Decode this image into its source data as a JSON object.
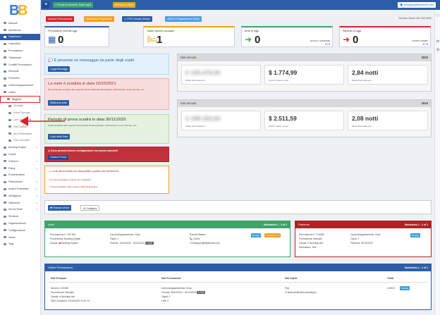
{
  "topbar": {
    "version_btn": "Prova la versione: Suite Light",
    "close_btn": "Passa a Extra",
    "user": "svilupppo@bbplanner.com"
  },
  "quick": {
    "b1": "Inserisci Prenotazione",
    "b2": "Richiesta di Pagamento",
    "b3": "POS Virtuale (Stripe)",
    "b4": "Ultimi 10 Pagamenti su Stripe"
  },
  "service": "Servizio Clienti 392 453 9502",
  "sidebar": [
    {
      "label": "Manuali"
    },
    {
      "label": "Assistenza"
    },
    {
      "label": "Dashboard"
    },
    {
      "label": "Calendario"
    },
    {
      "label": "Prenotazioni"
    },
    {
      "label": "Trattamenti"
    },
    {
      "label": "Conflitti Prenotazioni"
    },
    {
      "label": "Richieste"
    },
    {
      "label": "Preventivi"
    },
    {
      "label": "Camere/Appartamenti"
    },
    {
      "label": "Listino"
    },
    {
      "label": "Stagioni"
    },
    {
      "label": "Tipologie"
    },
    {
      "label": "Prezzi Tipologie"
    },
    {
      "label": "Conf. Trattamenti"
    },
    {
      "label": "Piani Tariffari"
    },
    {
      "label": "Non Rimborsabile"
    },
    {
      "label": "Piani Giornalieri"
    },
    {
      "label": "Booking Engine"
    },
    {
      "label": "Canali"
    },
    {
      "label": "Check-in"
    },
    {
      "label": "Policy"
    },
    {
      "label": "Preventivatore"
    },
    {
      "label": "Fatturazione"
    },
    {
      "label": "Analisi Finanziarie"
    },
    {
      "label": "Intelligence"
    },
    {
      "label": "Statistiche"
    },
    {
      "label": "Servizi Suite"
    },
    {
      "label": "Struttura"
    },
    {
      "label": "Organizzazione"
    },
    {
      "label": "Configurazione"
    },
    {
      "label": "Utenti"
    },
    {
      "label": "Tags"
    }
  ],
  "stats": {
    "arrivals_label": "Prenotazioni ricevute oggi",
    "arrivals_val": "0",
    "rooms_label": "Totale Camere occupate",
    "rooms_val": "1",
    "in_label": "Arrivi di oggi",
    "in_val": "0",
    "in_sub": "check-in completati",
    "in_frac": "0 / 0",
    "out_label": "Partenze di oggi",
    "out_val": "0",
    "out_sub": "camere saldate",
    "out_frac": "0 / 0"
  },
  "msg_guest": {
    "text": "È presente un messaggio da parte degli ospiti",
    "btn": "Leggi Messaggi"
  },
  "msg_expired": {
    "title": "La suite è scaduta in data 10/10/2021",
    "text": "Non potrai più accedere alle seguenti funzionalità: Booking Engine, Fatturazione, Invio Voucher, ecc.",
    "btn": "Riattiva la suite"
  },
  "msg_trial": {
    "title": "Periodo di prova scadrà in data 30/11/2029",
    "text": "Potrai accedere alle seguenti funzionalità: Booking Engine, Fatturazione, Invio Voucher, ecc.",
    "btn": "Costi della Suite"
  },
  "msg_prices": {
    "text": "Sono presenti alcune configurazioni con prezzi mancanti",
    "btn": "Gestisci Prezzi"
  },
  "notice": {
    "line1": "La struttura risulta non disponibile a partire dal 29/04/2024",
    "line2": "Ci sono tipologie (o prezzi) non configurati",
    "line3": "Inserire politiche sulla privacy nel Booking Engine"
  },
  "year1": {
    "title": "Dati annuali",
    "year": "2023",
    "v1": "€ 135.478,00",
    "l1": "Totale Pernottamenti",
    "v2": "$ 1.774,99",
    "l2": "Prezzo medio a notte",
    "v3": "2,84 notti",
    "l3": "Media Pernottamenti"
  },
  "year2": {
    "title": "Dati annuali",
    "year": "2024",
    "v1": "€ 208.183,00",
    "l1": "Totale Pernottamenti",
    "v2": "$ 2.511,59",
    "l2": "Prezzo medio a notte",
    "v3": "2,08 notti",
    "l3": "Media Pernottamenti"
  },
  "actions": {
    "print": "Stampa veloce",
    "config": "Configura"
  },
  "arrivi": {
    "title": "Arrivi",
    "shown": "Mostrando 1 - 1 of 1",
    "pren": "Prenotazione n° 20C7BC",
    "prov": "Provenienza: Booking Engine",
    "canale": "Canale:",
    "canale_val": "Booking Engine",
    "camera": "Camera/Appartamento: Viola",
    "ospiti": "Ospiti: 2",
    "periodo": "Periodo: 13/11/2024 - 16/11/2024",
    "nights": "3 notti",
    "name": "Parrotto Matteo",
    "phone": "23215",
    "email": "svilupppo@bbplanner.com",
    "b1": "Dettagli",
    "b2": "Check-in: 0 / 2"
  },
  "partenze": {
    "title": "Partenze",
    "shown": "Mostrando 1 - 1 of 1",
    "pren": "Prenotazione n° 21945E",
    "prov": "Provenienza: Manuale",
    "canale": "Canale:",
    "canale_val": "Booking.com",
    "nom": "Nominativo: Test",
    "camera": "Camera/Appartamento: Viola",
    "ospiti": "Ospiti: 2",
    "partenza": "Partenza: 31/10/2024",
    "b1": "Dettagli"
  },
  "ultime": {
    "title": "Ultime Prenotazioni",
    "shown": "Mostrando 1 - 1 of 1",
    "h1": "Dati Principali",
    "h2": "Dati Prenotazione",
    "h3": "Dati Ospite",
    "h4": "Totale",
    "num": "Numero: 21945E",
    "prov": "Provenienza: Manuale",
    "canale": "Canale:",
    "canale_val": "Booking.com",
    "data": "Data Creazione: 16/10/2024 11:02:13",
    "camera": "Camera/Appartamento: Viola",
    "periodo": "Periodo: 25/10/2024 - 31/10/2024",
    "nights": "6 notti",
    "ospiti": "Ospiti: 2",
    "letti": "Letti: 0",
    "guest": "Test",
    "email": "andreamhtu@fvconsulting.it",
    "total": "5.000 $",
    "b1": "Dettagli"
  }
}
